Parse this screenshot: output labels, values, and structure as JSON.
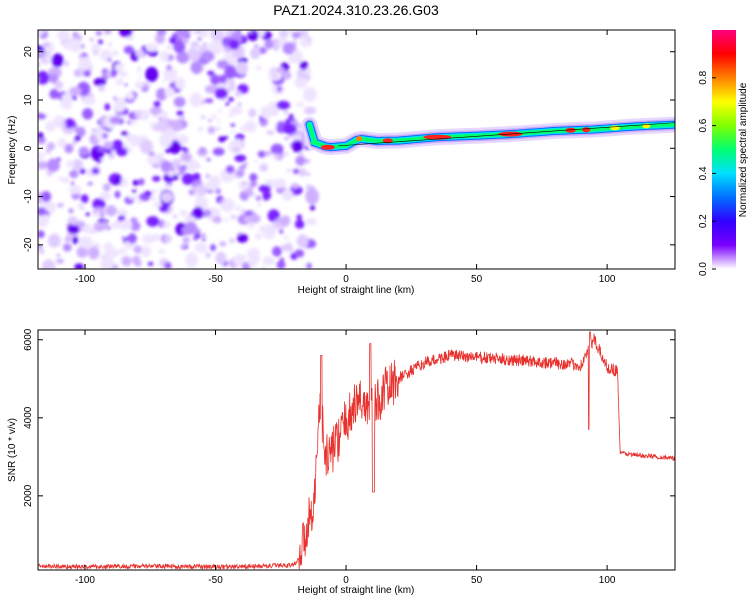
{
  "title": "PAZ1.2024.310.23.26.G03",
  "colors": {
    "snr_line": "#e8302c",
    "colorbar": [
      "#ffffff",
      "#7a00ff",
      "#3000ff",
      "#0070ff",
      "#00e0ff",
      "#00ff70",
      "#80ff00",
      "#ffff00",
      "#ff8000",
      "#ff0000",
      "#ff0080"
    ]
  },
  "chart_data": [
    {
      "type": "heatmap",
      "xlabel": "Height of straight line (km)",
      "ylabel": "Frequency (Hz)",
      "xlim": [
        -118,
        126
      ],
      "ylim": [
        -25,
        24.5
      ],
      "xticks": [
        "-100",
        "-50",
        "0",
        "50",
        "100"
      ],
      "yticks": [
        "-20",
        "-10",
        "0",
        "10",
        "20"
      ],
      "colorbar": {
        "label": "Normalized spectral amplitude",
        "range": [
          0,
          1
        ],
        "ticks": [
          "0.0",
          "0.2",
          "0.4",
          "0.6",
          "0.8"
        ]
      },
      "noise_region_x": [
        -118,
        -15
      ],
      "ridge": [
        {
          "x": -12,
          "y": 1.2
        },
        {
          "x": -7,
          "y": 0.2
        },
        {
          "x": 0,
          "y": 0.5
        },
        {
          "x": 5,
          "y": 2.0
        },
        {
          "x": 12,
          "y": 1.5
        },
        {
          "x": 20,
          "y": 1.6
        },
        {
          "x": 35,
          "y": 2.3
        },
        {
          "x": 50,
          "y": 2.6
        },
        {
          "x": 65,
          "y": 3.0
        },
        {
          "x": 80,
          "y": 3.6
        },
        {
          "x": 95,
          "y": 3.9
        },
        {
          "x": 110,
          "y": 4.5
        },
        {
          "x": 126,
          "y": 4.9
        }
      ]
    },
    {
      "type": "line",
      "xlabel": "Height of straight line (km)",
      "ylabel": "SNR (10 * v/v)",
      "xlim": [
        -118,
        126
      ],
      "ylim": [
        100,
        6250
      ],
      "xticks": [
        "-100",
        "-50",
        "0",
        "50",
        "100"
      ],
      "yticks": [
        "2000",
        "4000",
        "6000"
      ],
      "series": [
        {
          "color": "#e8302c",
          "x": [
            -118,
            -100,
            -80,
            -60,
            -40,
            -20,
            -18,
            -15,
            -12,
            -10,
            -8,
            -5,
            0,
            5,
            10,
            15,
            20,
            30,
            40,
            50,
            60,
            70,
            80,
            90,
            95,
            100,
            104,
            105,
            110,
            120,
            126
          ],
          "y": [
            200,
            180,
            200,
            190,
            180,
            230,
            400,
            1200,
            2000,
            4500,
            3000,
            3200,
            3900,
            4500,
            4200,
            4700,
            5000,
            5400,
            5600,
            5550,
            5500,
            5450,
            5400,
            5350,
            6000,
            5300,
            5200,
            3100,
            3050,
            3000,
            2950
          ]
        }
      ]
    }
  ]
}
